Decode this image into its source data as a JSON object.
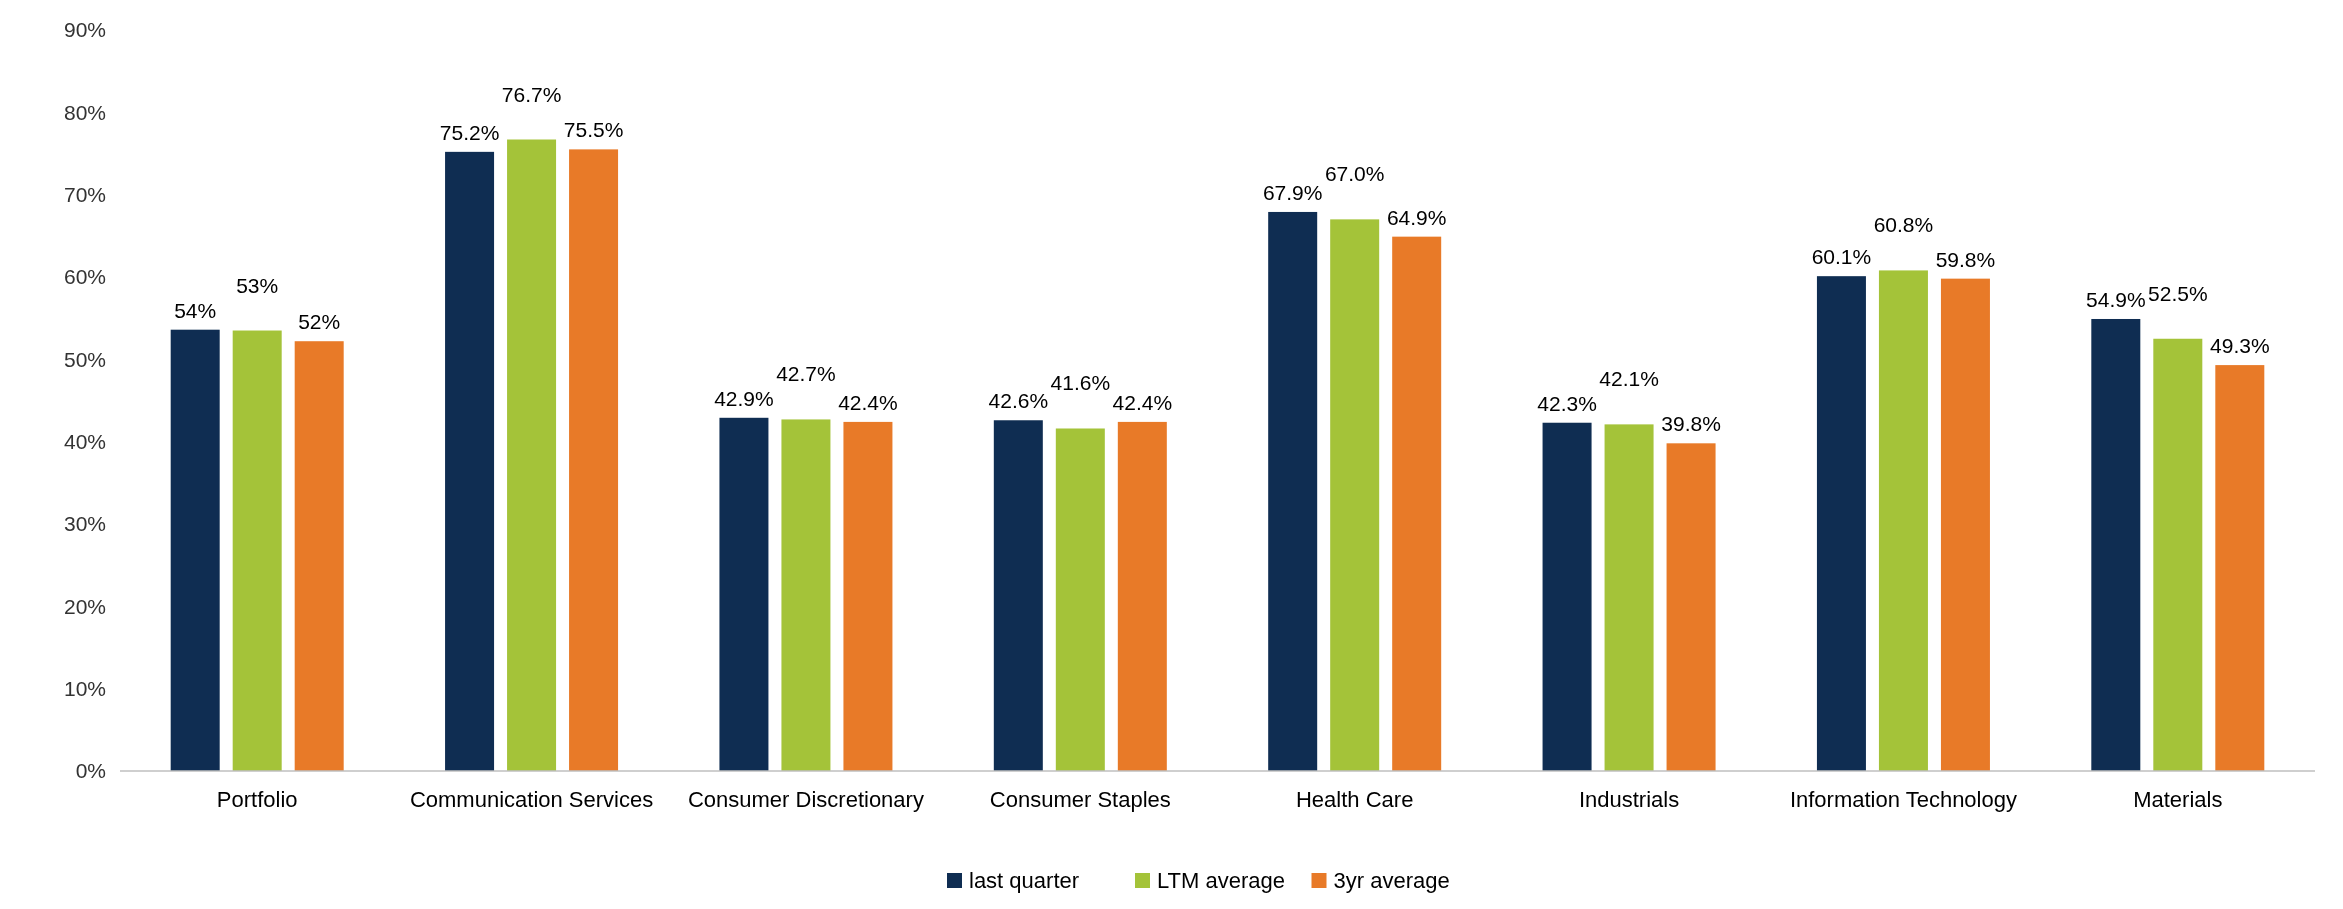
{
  "chart_data": {
    "type": "bar",
    "categories": [
      "Portfolio",
      "Communication Services",
      "Consumer Discretionary",
      "Consumer Staples",
      "Health Care",
      "Industrials",
      "Information Technology",
      "Materials"
    ],
    "series": [
      {
        "name": "last quarter",
        "color": "#0f2d52",
        "values": [
          53.6,
          75.2,
          42.9,
          42.6,
          67.9,
          42.3,
          60.1,
          54.9
        ],
        "value_labels": [
          "54%",
          "75.2%",
          "42.9%",
          "42.6%",
          "67.9%",
          "42.3%",
          "60.1%",
          "54.9%"
        ]
      },
      {
        "name": "LTM average",
        "color": "#a4c339",
        "values": [
          53.5,
          76.7,
          42.7,
          41.6,
          67.0,
          42.1,
          60.8,
          52.5
        ],
        "value_labels": [
          "53%",
          "76.7%",
          "42.7%",
          "41.6%",
          "67.0%",
          "42.1%",
          "60.8%",
          "52.5%"
        ]
      },
      {
        "name": "3yr average",
        "color": "#e87a28",
        "values": [
          52.2,
          75.5,
          42.4,
          42.4,
          64.9,
          39.8,
          59.8,
          49.3
        ],
        "value_labels": [
          "52%",
          "75.5%",
          "42.4%",
          "42.4%",
          "64.9%",
          "39.8%",
          "59.8%",
          "49.3%"
        ]
      }
    ],
    "ylim": [
      0,
      90
    ],
    "yticks": [
      {
        "value": 0,
        "label": "0%"
      },
      {
        "value": 10,
        "label": "10%"
      },
      {
        "value": 20,
        "label": "20%"
      },
      {
        "value": 30,
        "label": "30%"
      },
      {
        "value": 40,
        "label": "40%"
      },
      {
        "value": 50,
        "label": "50%"
      },
      {
        "value": 60,
        "label": "60%"
      },
      {
        "value": 70,
        "label": "70%"
      },
      {
        "value": 80,
        "label": "80%"
      },
      {
        "value": 90,
        "label": "90%"
      }
    ],
    "legend": "bottom"
  }
}
